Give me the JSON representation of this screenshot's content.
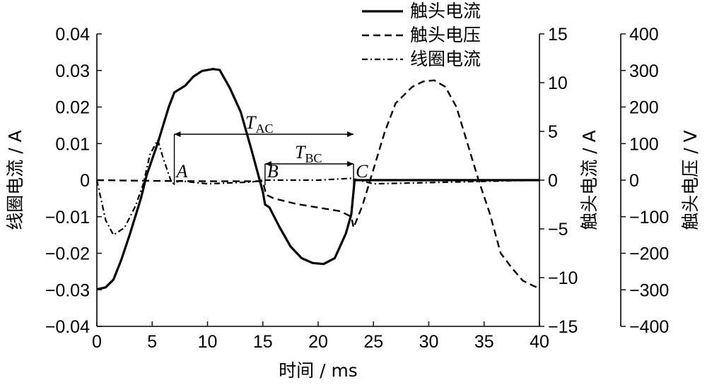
{
  "chart_data": {
    "type": "line",
    "xlabel": "时间 / ms",
    "x_ticks": [
      "0",
      "5",
      "10",
      "15",
      "20",
      "25",
      "30",
      "35",
      "40"
    ],
    "xlim": [
      0,
      40
    ],
    "axes": [
      {
        "id": "coil-current",
        "label": "线圈电流 / A",
        "side": "left",
        "ylim": [
          -0.04,
          0.04
        ],
        "ticks": [
          {
            "v": 0.04,
            "t": "0.04"
          },
          {
            "v": 0.03,
            "t": "0.03"
          },
          {
            "v": 0.02,
            "t": "0.02"
          },
          {
            "v": 0.01,
            "t": "0.01"
          },
          {
            "v": 0,
            "t": "0"
          },
          {
            "v": -0.01,
            "t": "−0.01"
          },
          {
            "v": -0.02,
            "t": "−0.02"
          },
          {
            "v": -0.03,
            "t": "−0.03"
          },
          {
            "v": -0.04,
            "t": "−0.04"
          }
        ]
      },
      {
        "id": "contact-current",
        "label": "触头电流 / A",
        "side": "right-inner",
        "ylim": [
          -15,
          15
        ],
        "ticks": [
          {
            "v": 15,
            "t": "15"
          },
          {
            "v": 10,
            "t": "10"
          },
          {
            "v": 5,
            "t": "5"
          },
          {
            "v": 0,
            "t": "0"
          },
          {
            "v": -5,
            "t": "−5"
          },
          {
            "v": -10,
            "t": "−10"
          },
          {
            "v": -15,
            "t": "−15"
          }
        ]
      },
      {
        "id": "contact-voltage",
        "label": "触头电压 / V",
        "side": "right-outer",
        "ylim": [
          -400,
          400
        ],
        "ticks": [
          {
            "v": 400,
            "t": "400"
          },
          {
            "v": 300,
            "t": "300"
          },
          {
            "v": 200,
            "t": "200"
          },
          {
            "v": 100,
            "t": "100"
          },
          {
            "v": 0,
            "t": "0"
          },
          {
            "v": -100,
            "t": "−100"
          },
          {
            "v": -200,
            "t": "−200"
          },
          {
            "v": -300,
            "t": "−300"
          },
          {
            "v": -400,
            "t": "−400"
          }
        ]
      }
    ],
    "series": [
      {
        "name": "触头电流",
        "axis": "contact-current",
        "style": "solid",
        "points": [
          [
            0,
            -11.2
          ],
          [
            0.8,
            -11.0
          ],
          [
            1.5,
            -10.2
          ],
          [
            2.2,
            -8.2
          ],
          [
            3,
            -5.5
          ],
          [
            4,
            -1.8
          ],
          [
            4.5,
            0.5
          ],
          [
            5.5,
            3.8
          ],
          [
            6.5,
            7.5
          ],
          [
            7,
            9.0
          ],
          [
            8,
            9.7
          ],
          [
            8.7,
            10.6
          ],
          [
            9.5,
            11.2
          ],
          [
            10.5,
            11.4
          ],
          [
            11.1,
            11.3
          ],
          [
            12,
            9.5
          ],
          [
            13,
            7.0
          ],
          [
            14,
            3.0
          ],
          [
            15,
            -1.2
          ],
          [
            15.2,
            -2.5
          ],
          [
            15.6,
            -2.8
          ],
          [
            16.5,
            -4.8
          ],
          [
            17.5,
            -6.8
          ],
          [
            18.5,
            -8.0
          ],
          [
            19.5,
            -8.5
          ],
          [
            20.5,
            -8.6
          ],
          [
            21.5,
            -8.0
          ],
          [
            22.5,
            -5.5
          ],
          [
            23,
            -3.5
          ],
          [
            23.3,
            0
          ],
          [
            30,
            0
          ],
          [
            40,
            0
          ]
        ]
      },
      {
        "name": "触头电压",
        "axis": "contact-voltage",
        "style": "dash",
        "points": [
          [
            0,
            0
          ],
          [
            5,
            -2
          ],
          [
            10,
            -3
          ],
          [
            15,
            -3
          ],
          [
            15.3,
            -40
          ],
          [
            16,
            -50
          ],
          [
            18,
            -65
          ],
          [
            20,
            -75
          ],
          [
            22,
            -85
          ],
          [
            23,
            -100
          ],
          [
            23.2,
            -130
          ],
          [
            24,
            -70
          ],
          [
            25,
            30
          ],
          [
            26,
            130
          ],
          [
            27,
            210
          ],
          [
            28.5,
            255
          ],
          [
            29.5,
            270
          ],
          [
            30.5,
            273
          ],
          [
            31.5,
            255
          ],
          [
            32.5,
            200
          ],
          [
            33.5,
            100
          ],
          [
            34.5,
            0
          ],
          [
            35.5,
            -90
          ],
          [
            36.5,
            -200
          ],
          [
            37.5,
            -240
          ],
          [
            38.5,
            -275
          ],
          [
            39.5,
            -290
          ],
          [
            40,
            -295
          ]
        ]
      },
      {
        "name": "线圈电流",
        "axis": "coil-current",
        "style": "dashdot",
        "points": [
          [
            0,
            0.0
          ],
          [
            0.8,
            -0.011
          ],
          [
            1.5,
            -0.015
          ],
          [
            2.5,
            -0.013
          ],
          [
            3.5,
            -0.007
          ],
          [
            4.2,
            -0.001
          ],
          [
            4.8,
            0.007
          ],
          [
            5.5,
            0.011
          ],
          [
            6,
            0.006
          ],
          [
            6.5,
            0.0015
          ],
          [
            6.8,
            -0.001
          ],
          [
            7.5,
            -0.0002
          ],
          [
            10,
            -0.001
          ],
          [
            14,
            -0.0005
          ],
          [
            15,
            0.0
          ],
          [
            20,
            0.0
          ],
          [
            23,
            0.0005
          ],
          [
            25,
            -0.001
          ],
          [
            40,
            0.0
          ]
        ]
      }
    ],
    "legend": {
      "placement": "top-right",
      "entries": [
        "触头电流",
        "触头电压",
        "线圈电流"
      ]
    },
    "annotations": [
      {
        "text": "A",
        "x": 7
      },
      {
        "text": "B",
        "x": 15.2
      },
      {
        "text": "C",
        "x": 23.2
      },
      {
        "text": "T",
        "sub": "AC",
        "from": 7,
        "to": 23.2
      },
      {
        "text": "T",
        "sub": "BC",
        "from": 15.2,
        "to": 23.2
      }
    ],
    "grid": false
  }
}
